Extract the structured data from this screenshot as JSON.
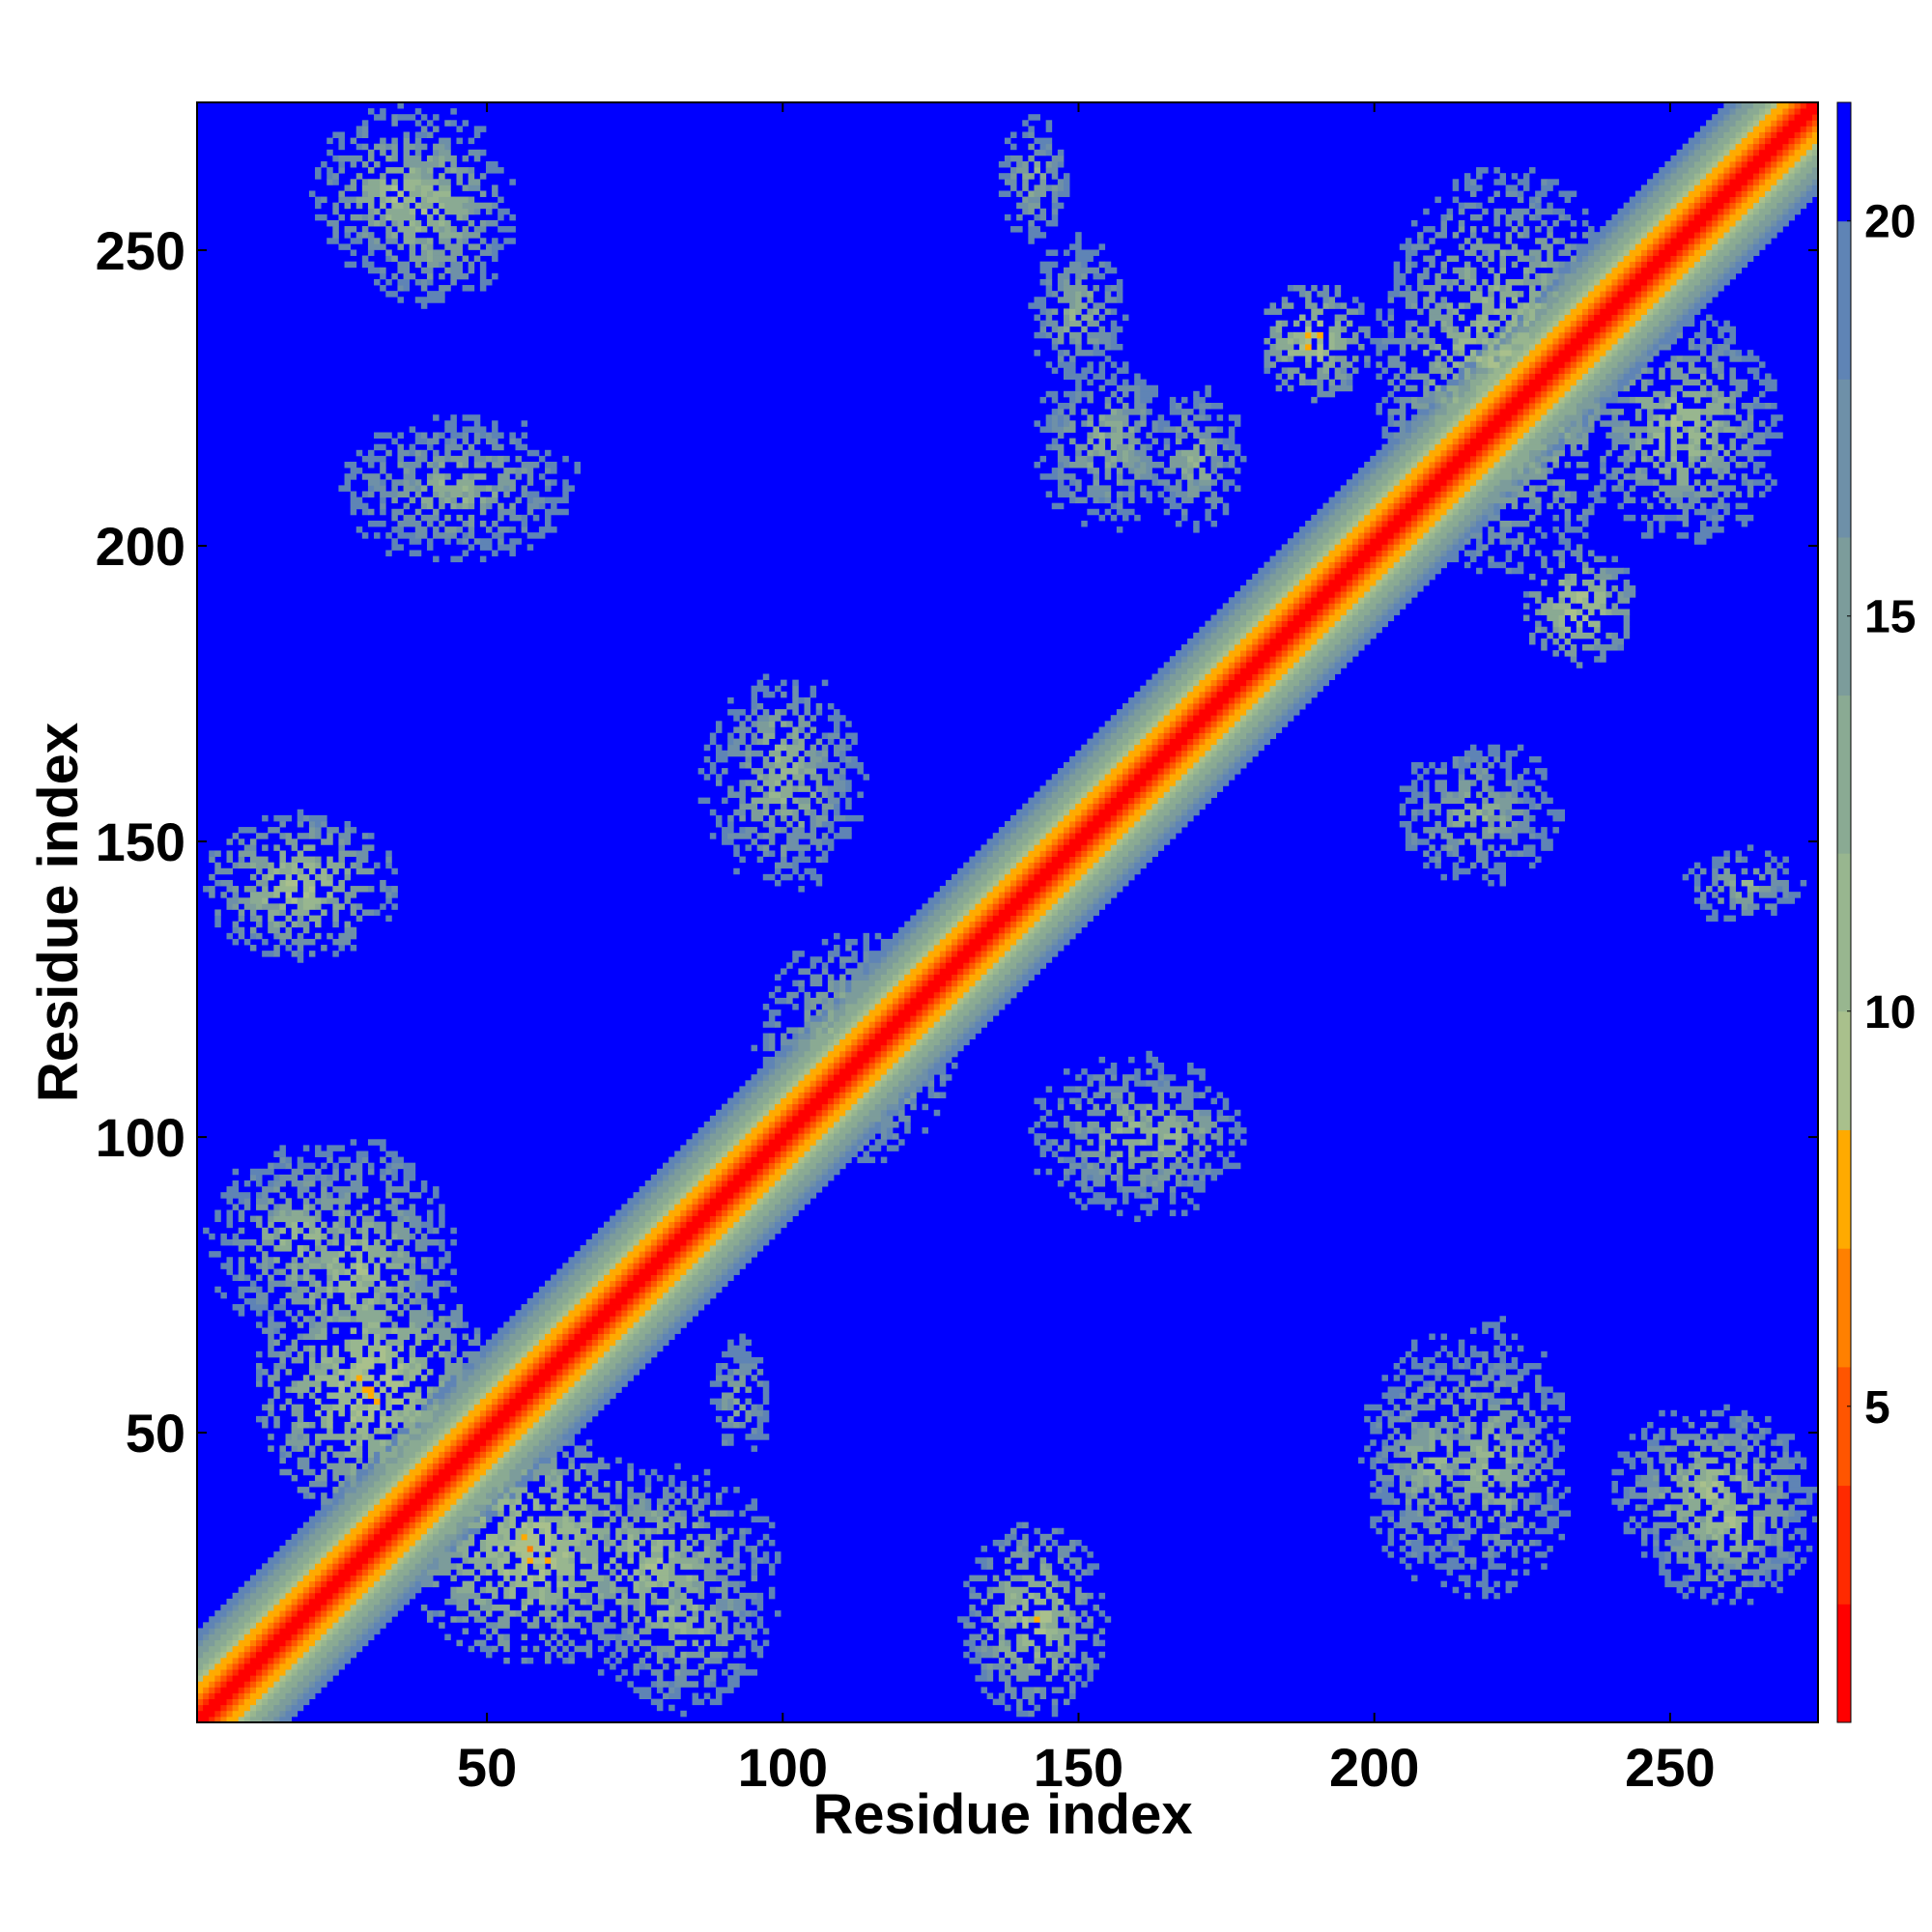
{
  "chart_data": {
    "type": "heatmap",
    "title": "",
    "xlabel": "Residue index",
    "ylabel": "Residue index",
    "n_residues": 275,
    "xlim": [
      1,
      275
    ],
    "ylim": [
      1,
      275
    ],
    "x_ticks": [
      50,
      100,
      150,
      200,
      250
    ],
    "y_ticks": [
      50,
      100,
      150,
      200,
      250
    ],
    "colorbar": {
      "range": [
        1,
        21.5
      ],
      "ticks": [
        5,
        10,
        15,
        20
      ],
      "levels": [
        {
          "upto": 2.5,
          "color": "#ff0000"
        },
        {
          "upto": 4.0,
          "color": "#ff2a00"
        },
        {
          "upto": 5.5,
          "color": "#ff5500"
        },
        {
          "upto": 7.0,
          "color": "#ff8000"
        },
        {
          "upto": 8.5,
          "color": "#ffaa00"
        },
        {
          "upto": 10.0,
          "color": "#a9c08c"
        },
        {
          "upto": 12.0,
          "color": "#98b68f"
        },
        {
          "upto": 14.0,
          "color": "#8aaa93"
        },
        {
          "upto": 16.0,
          "color": "#7c9c9b"
        },
        {
          "upto": 18.0,
          "color": "#6e90a8"
        },
        {
          "upto": 20.0,
          "color": "#5f84b5"
        },
        {
          "upto": 21.5,
          "color": "#0000ff"
        }
      ]
    },
    "background_value": 21.5,
    "diagonal_band": {
      "peak_value": 1.0,
      "falloff_per_residue": 1.25
    },
    "contact_regions": [
      {
        "x": [
          10,
          50
        ],
        "y": [
          35,
          80
        ],
        "min": 5
      },
      {
        "x": [
          35,
          80
        ],
        "y": [
          10,
          50
        ],
        "min": 5
      },
      {
        "x": [
          55,
          100
        ],
        "y": [
          10,
          45
        ],
        "min": 7
      },
      {
        "x": [
          10,
          45
        ],
        "y": [
          55,
          100
        ],
        "min": 7
      },
      {
        "x": [
          1,
          35
        ],
        "y": [
          65,
          100
        ],
        "min": 8
      },
      {
        "x": [
          65,
          100
        ],
        "y": [
          1,
          35
        ],
        "min": 8
      },
      {
        "x": [
          1,
          35
        ],
        "y": [
          130,
          155
        ],
        "min": 6
      },
      {
        "x": [
          130,
          155
        ],
        "y": [
          1,
          35
        ],
        "min": 6
      },
      {
        "x": [
          20,
          70
        ],
        "y": [
          195,
          225
        ],
        "min": 9
      },
      {
        "x": [
          195,
          225
        ],
        "y": [
          20,
          70
        ],
        "min": 9
      },
      {
        "x": [
          25,
          55
        ],
        "y": [
          240,
          275
        ],
        "min": 7
      },
      {
        "x": [
          240,
          275
        ],
        "y": [
          25,
          55
        ],
        "min": 7
      },
      {
        "x": [
          85,
          115
        ],
        "y": [
          140,
          180
        ],
        "min": 8
      },
      {
        "x": [
          140,
          180
        ],
        "y": [
          85,
          115
        ],
        "min": 8
      },
      {
        "x": [
          140,
          160
        ],
        "y": [
          225,
          255
        ],
        "min": 9
      },
      {
        "x": [
          180,
          200
        ],
        "y": [
          225,
          245
        ],
        "min": 5
      },
      {
        "x": [
          225,
          245
        ],
        "y": [
          180,
          200
        ],
        "min": 5
      },
      {
        "x": [
          95,
          130
        ],
        "y": [
          95,
          135
        ],
        "min": 7
      },
      {
        "x": [
          150,
          180
        ],
        "y": [
          90,
          110
        ],
        "min": 8
      },
      {
        "x": [
          90,
          110
        ],
        "y": [
          150,
          180
        ],
        "min": 8
      },
      {
        "x": [
          200,
          245
        ],
        "y": [
          195,
          265
        ],
        "min": 6
      },
      {
        "x": [
          235,
          270
        ],
        "y": [
          200,
          240
        ],
        "min": 7
      },
      {
        "x": [
          200,
          235
        ],
        "y": [
          140,
          170
        ],
        "min": 9
      },
      {
        "x": [
          140,
          170
        ],
        "y": [
          200,
          235
        ],
        "min": 9
      },
      {
        "x": [
          245,
          275
        ],
        "y": [
          20,
          50
        ],
        "min": 7
      },
      {
        "x": [
          20,
          50
        ],
        "y": [
          245,
          275
        ],
        "min": 7
      },
      {
        "x": [
          205,
          235
        ],
        "y": [
          20,
          70
        ],
        "min": 8
      },
      {
        "x": [
          250,
          275
        ],
        "y": [
          135,
          150
        ],
        "min": 9
      },
      {
        "x": [
          135,
          150
        ],
        "y": [
          250,
          275
        ],
        "min": 9
      },
      {
        "x": [
          160,
          180
        ],
        "y": [
          200,
          230
        ],
        "min": 9
      },
      {
        "x": [
          130,
          150
        ],
        "y": [
          1,
          35
        ],
        "min": 8
      },
      {
        "x": [
          85,
          100
        ],
        "y": [
          40,
          70
        ],
        "min": 10
      }
    ]
  }
}
